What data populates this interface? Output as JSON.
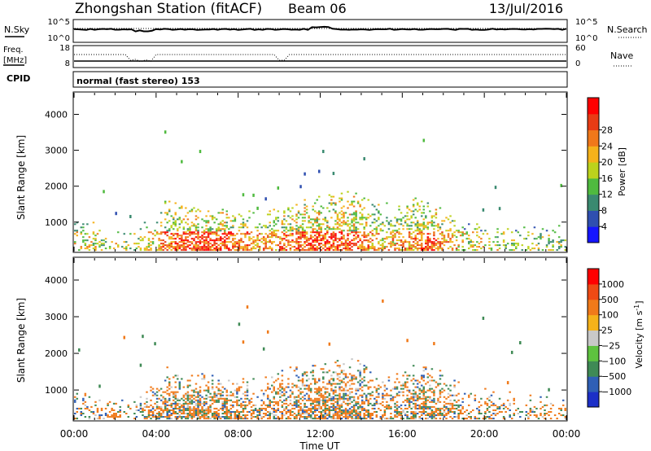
{
  "header": {
    "station": "Zhongshan Station (fitACF)",
    "beam": "Beam 06",
    "date": "13/Jul/2016"
  },
  "status_panels": {
    "noise": {
      "left_label": "N.Sky",
      "left_ticks": [
        "10^5",
        "10^0"
      ],
      "right_label": "N.Search",
      "right_ticks": [
        "10^5",
        "10^0"
      ]
    },
    "frequency": {
      "left_label_1": "Freq.",
      "left_label_2": "[MHz]",
      "left_ticks": [
        "18",
        "8"
      ],
      "right_label": "Nave",
      "right_ticks": [
        "60",
        "0"
      ]
    },
    "cpid": {
      "label": "CPID",
      "mode": "normal (fast stereo) 153"
    }
  },
  "chart_data": [
    {
      "type": "heatmap",
      "name": "power",
      "ylabel": "Slant Range [km]",
      "ylim": [
        180,
        4600
      ],
      "yticks": [
        1000,
        2000,
        3000,
        4000
      ],
      "xlim": [
        0,
        24
      ],
      "colorbar": {
        "label": "Power [dB]",
        "ticks": [
          4,
          8,
          12,
          16,
          20,
          24,
          28
        ],
        "colors": [
          "#1515ff",
          "#2f4fb0",
          "#3a8a70",
          "#4fba3f",
          "#bcd21c",
          "#f5b21a",
          "#f0781a",
          "#e83c15",
          "#ff0000"
        ]
      },
      "activity_profile": [
        {
          "t": 0.0,
          "top": 900,
          "intensity": 0.45
        },
        {
          "t": 1.5,
          "top": 700,
          "intensity": 0.35
        },
        {
          "t": 3.0,
          "top": 650,
          "intensity": 0.3
        },
        {
          "t": 4.5,
          "top": 1300,
          "intensity": 0.7
        },
        {
          "t": 6.0,
          "top": 1200,
          "intensity": 0.85
        },
        {
          "t": 7.5,
          "top": 1100,
          "intensity": 0.75
        },
        {
          "t": 9.0,
          "top": 1000,
          "intensity": 0.6
        },
        {
          "t": 10.5,
          "top": 1300,
          "intensity": 0.7
        },
        {
          "t": 12.0,
          "top": 1400,
          "intensity": 0.8
        },
        {
          "t": 13.5,
          "top": 1600,
          "intensity": 0.8
        },
        {
          "t": 15.0,
          "top": 1200,
          "intensity": 0.5
        },
        {
          "t": 16.5,
          "top": 1400,
          "intensity": 0.65
        },
        {
          "t": 17.5,
          "top": 1300,
          "intensity": 0.75
        },
        {
          "t": 19.0,
          "top": 900,
          "intensity": 0.4
        },
        {
          "t": 21.0,
          "top": 800,
          "intensity": 0.35
        },
        {
          "t": 24.0,
          "top": 700,
          "intensity": 0.3
        }
      ]
    },
    {
      "type": "heatmap",
      "name": "velocity",
      "ylabel": "Slant Range [km]",
      "xlabel": "Time UT",
      "ylim": [
        180,
        4600
      ],
      "yticks": [
        1000,
        2000,
        3000,
        4000
      ],
      "xlim": [
        0,
        24
      ],
      "xticks": [
        "00:00",
        "04:00",
        "08:00",
        "12:00",
        "16:00",
        "20:00",
        "00:00"
      ],
      "colorbar": {
        "label": "Velocity [m s",
        "label_sup": "-1",
        "label_end": "]",
        "ticks": [
          "1000",
          "500",
          "100",
          "25",
          "−25",
          "−100",
          "−500",
          "−1000"
        ],
        "colors": [
          "#1c2fc7",
          "#2f5fb5",
          "#3f8a55",
          "#5ec23f",
          "#c8c8c8",
          "#f5b21a",
          "#f07a1a",
          "#ee4a14",
          "#ff0000"
        ]
      },
      "dominant_colors": [
        "#f07a1a",
        "#3f8a55",
        "#2f5fb5",
        "#c8c8c8"
      ]
    }
  ]
}
